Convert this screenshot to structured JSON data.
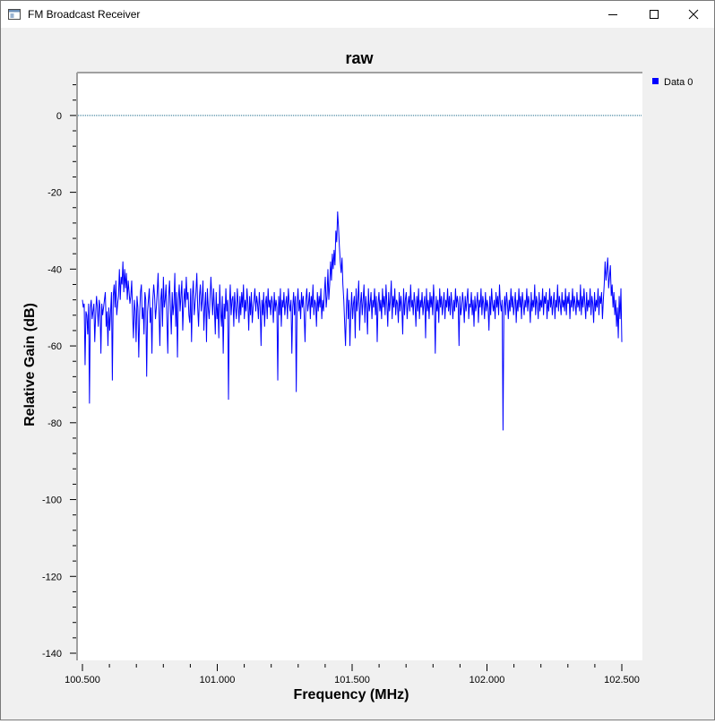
{
  "window": {
    "title": "FM Broadcast Receiver",
    "controls": {
      "minimize": "minimize-icon",
      "maximize": "maximize-icon",
      "close": "close-icon"
    }
  },
  "chart_data": {
    "type": "line",
    "title": "raw",
    "xlabel": "Frequency (MHz)",
    "ylabel": "Relative Gain (dB)",
    "xlim": [
      100.5,
      102.5
    ],
    "ylim": [
      -140,
      10
    ],
    "x_ticks": [
      "100.500",
      "101.000",
      "101.500",
      "102.000",
      "102.500"
    ],
    "x_tick_values": [
      100.5,
      101.0,
      101.5,
      102.0,
      102.5
    ],
    "y_ticks": [
      "0",
      "-20",
      "-40",
      "-60",
      "-80",
      "-100",
      "-120",
      "-140"
    ],
    "y_tick_values": [
      0,
      -20,
      -40,
      -60,
      -80,
      -100,
      -120,
      -140
    ],
    "reference_line": 0,
    "grid": false,
    "legend_position": "top-right",
    "series": [
      {
        "name": "Data 0",
        "color": "#0000ff",
        "x_start": 100.5,
        "x_end": 102.5,
        "values": [
          -48,
          -50,
          -49,
          -65,
          -51,
          -52,
          -57,
          -49,
          -75,
          -50,
          -48,
          -53,
          -51,
          -49,
          -59,
          -52,
          -47,
          -50,
          -55,
          -48,
          -50,
          -62,
          -49,
          -52,
          -50,
          -48,
          -46,
          -55,
          -51,
          -60,
          -50,
          -56,
          -51,
          -46,
          -69,
          -47,
          -44,
          -50,
          -43,
          -52,
          -49,
          -47,
          -40,
          -48,
          -42,
          -44,
          -38,
          -46,
          -40,
          -45,
          -41,
          -48,
          -43,
          -46,
          -49,
          -47,
          -43,
          -52,
          -58,
          -48,
          -51,
          -59,
          -47,
          -50,
          -63,
          -52,
          -46,
          -44,
          -53,
          -50,
          -57,
          -46,
          -48,
          -68,
          -51,
          -48,
          -45,
          -54,
          -50,
          -62,
          -48,
          -44,
          -47,
          -53,
          -50,
          -46,
          -41,
          -51,
          -60,
          -48,
          -45,
          -55,
          -42,
          -50,
          -48,
          -44,
          -53,
          -62,
          -47,
          -43,
          -50,
          -57,
          -46,
          -52,
          -49,
          -41,
          -55,
          -46,
          -63,
          -48,
          -44,
          -51,
          -47,
          -43,
          -56,
          -49,
          -45,
          -50,
          -42,
          -48,
          -46,
          -52,
          -54,
          -45,
          -59,
          -47,
          -43,
          -52,
          -49,
          -46,
          -41,
          -50,
          -55,
          -47,
          -44,
          -51,
          -48,
          -43,
          -56,
          -50,
          -46,
          -59,
          -45,
          -50,
          -53,
          -48,
          -42,
          -47,
          -52,
          -45,
          -50,
          -57,
          -46,
          -53,
          -49,
          -58,
          -44,
          -51,
          -55,
          -47,
          -62,
          -49,
          -53,
          -45,
          -51,
          -48,
          -74,
          -50,
          -44,
          -52,
          -48,
          -47,
          -55,
          -46,
          -50,
          -53,
          -45,
          -49,
          -54,
          -47,
          -52,
          -46,
          -50,
          -44,
          -53,
          -48,
          -51,
          -45,
          -49,
          -56,
          -47,
          -52,
          -46,
          -54,
          -50,
          -48,
          -45,
          -51,
          -47,
          -49,
          -53,
          -46,
          -50,
          -60,
          -48,
          -52,
          -46,
          -55,
          -49,
          -47,
          -53,
          -45,
          -50,
          -48,
          -52,
          -47,
          -49,
          -54,
          -46,
          -51,
          -48,
          -50,
          -69,
          -47,
          -52,
          -45,
          -55,
          -48,
          -50,
          -46,
          -52,
          -49,
          -47,
          -53,
          -45,
          -49,
          -51,
          -48,
          -62,
          -50,
          -46,
          -52,
          -47,
          -72,
          -49,
          -45,
          -51,
          -48,
          -53,
          -46,
          -50,
          -47,
          -52,
          -59,
          -48,
          -45,
          -51,
          -49,
          -46,
          -53,
          -47,
          -50,
          -44,
          -52,
          -48,
          -49,
          -55,
          -46,
          -51,
          -47,
          -50,
          -45,
          -53,
          -48,
          -51,
          -46,
          -42,
          -50,
          -47,
          -40,
          -48,
          -44,
          -38,
          -43,
          -36,
          -40,
          -35,
          -39,
          -30,
          -33,
          -25,
          -29,
          -34,
          -38,
          -41,
          -37,
          -44,
          -48,
          -54,
          -60,
          -50,
          -45,
          -53,
          -48,
          -60,
          -51,
          -46,
          -53,
          -49,
          -47,
          -58,
          -45,
          -51,
          -48,
          -43,
          -56,
          -49,
          -46,
          -52,
          -48,
          -44,
          -54,
          -47,
          -50,
          -57,
          -45,
          -51,
          -49,
          -46,
          -53,
          -48,
          -50,
          -45,
          -52,
          -47,
          -59,
          -49,
          -46,
          -51,
          -48,
          -53,
          -45,
          -50,
          -47,
          -52,
          -44,
          -49,
          -55,
          -46,
          -51,
          -48,
          -43,
          -53,
          -47,
          -50,
          -45,
          -52,
          -48,
          -49,
          -54,
          -46,
          -51,
          -47,
          -50,
          -57,
          -45,
          -52,
          -48,
          -46,
          -53,
          -49,
          -47,
          -51,
          -44,
          -50,
          -48,
          -52,
          -46,
          -49,
          -55,
          -47,
          -51,
          -45,
          -53,
          -48,
          -50,
          -46,
          -52,
          -49,
          -47,
          -58,
          -45,
          -51,
          -48,
          -53,
          -46,
          -50,
          -47,
          -52,
          -44,
          -49,
          -62,
          -47,
          -51,
          -48,
          -54,
          -45,
          -50,
          -47,
          -52,
          -49,
          -46,
          -53,
          -48,
          -50,
          -45,
          -51,
          -47,
          -52,
          -46,
          -49,
          -53,
          -48,
          -51,
          -45,
          -50,
          -47,
          -49,
          -60,
          -47,
          -52,
          -50,
          -46,
          -49,
          -54,
          -47,
          -51,
          -48,
          -45,
          -53,
          -49,
          -50,
          -46,
          -52,
          -48,
          -55,
          -47,
          -51,
          -49,
          -46,
          -54,
          -48,
          -50,
          -45,
          -52,
          -47,
          -49,
          -53,
          -46,
          -51,
          -48,
          -50,
          -56,
          -47,
          -52,
          -45,
          -49,
          -51,
          -48,
          -53,
          -46,
          -50,
          -47,
          -52,
          -44,
          -49,
          -51,
          -48,
          -82,
          -50,
          -47,
          -52,
          -46,
          -49,
          -53,
          -48,
          -51,
          -45,
          -50,
          -47,
          -52,
          -49,
          -46,
          -54,
          -48,
          -51,
          -45,
          -50,
          -47,
          -53,
          -46,
          -49,
          -52,
          -48,
          -50,
          -45,
          -51,
          -47,
          -49,
          -54,
          -46,
          -51,
          -48,
          -50,
          -44,
          -52,
          -47,
          -49,
          -53,
          -46,
          -51,
          -48,
          -50,
          -45,
          -52,
          -47,
          -49,
          -46,
          -53,
          -48,
          -51,
          -45,
          -50,
          -47,
          -52,
          -49,
          -46,
          -53,
          -48,
          -50,
          -44,
          -51,
          -47,
          -49,
          -52,
          -46,
          -50,
          -48,
          -51,
          -45,
          -52,
          -47,
          -49,
          -46,
          -53,
          -48,
          -50,
          -45,
          -51,
          -47,
          -49,
          -52,
          -46,
          -50,
          -48,
          -51,
          -44,
          -52,
          -47,
          -50,
          -45,
          -49,
          -53,
          -46,
          -51,
          -48,
          -50,
          -45,
          -52,
          -47,
          -49,
          -54,
          -46,
          -51,
          -48,
          -50,
          -45,
          -52,
          -47,
          -49,
          -46,
          -53,
          -48,
          -44,
          -38,
          -43,
          -40,
          -37,
          -45,
          -42,
          -39,
          -47,
          -44,
          -50,
          -46,
          -52,
          -48,
          -55,
          -50,
          -58,
          -47,
          -53,
          -45,
          -59
        ]
      }
    ]
  }
}
